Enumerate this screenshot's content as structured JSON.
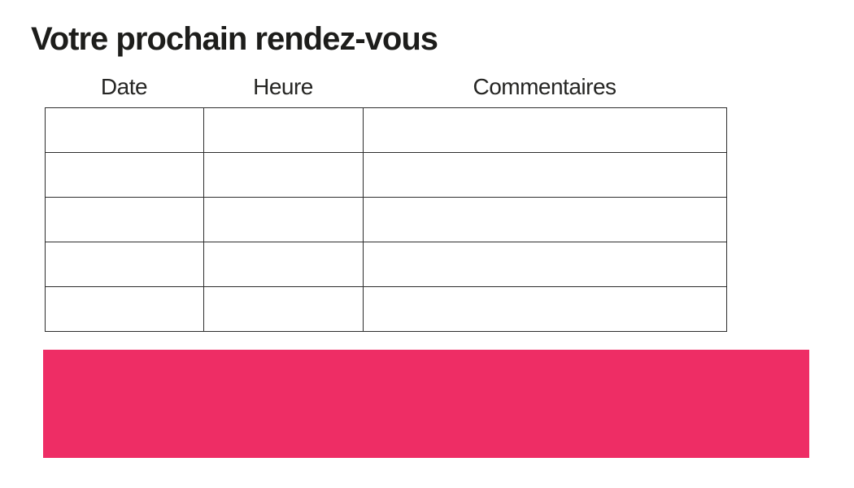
{
  "title": "Votre prochain rendez-vous",
  "table": {
    "headers": [
      "Date",
      "Heure",
      "Commentaires"
    ],
    "rows": [
      [
        "",
        "",
        ""
      ],
      [
        "",
        "",
        ""
      ],
      [
        "",
        "",
        ""
      ],
      [
        "",
        "",
        ""
      ],
      [
        "",
        "",
        ""
      ]
    ]
  },
  "colors": {
    "accent_pink": "#ee2d65",
    "table_border": "#2d2d2d",
    "text": "#1d1d1b"
  }
}
